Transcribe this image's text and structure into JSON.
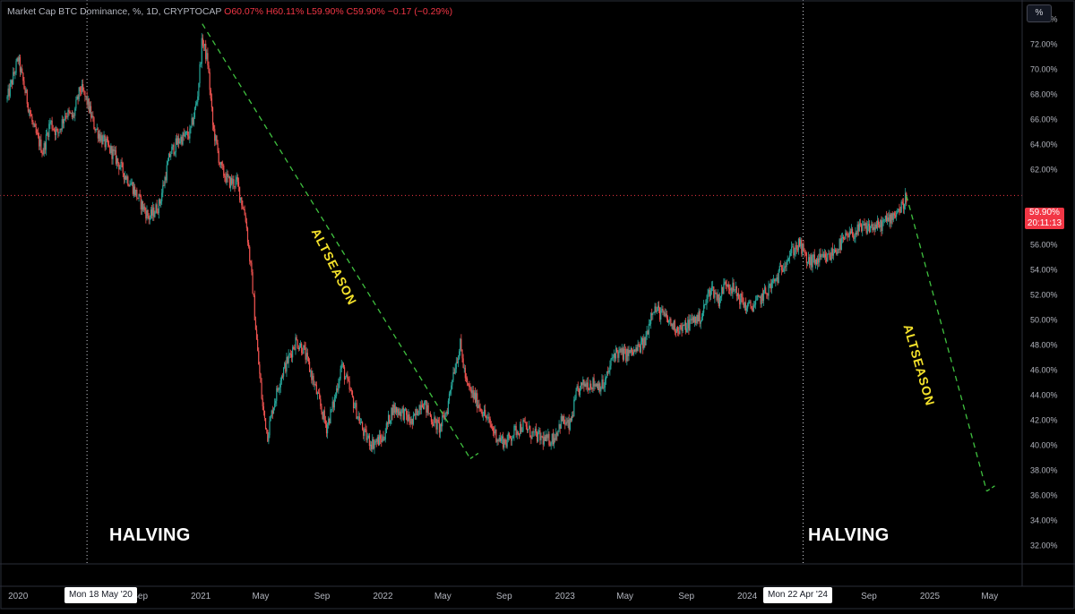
{
  "legend": {
    "symbol": "Market Cap BTC Dominance, %, 1D, CRYPTOCAP",
    "open": "O60.07%",
    "high": "H60.11%",
    "low": "L59.90%",
    "close": "C59.90%",
    "change": "−0.17 (−0.29%)"
  },
  "scale_button": "%",
  "last_price": {
    "value": "59.90%",
    "countdown": "20:11:13"
  },
  "annotations": {
    "halving_left": "HALVING",
    "halving_right": "HALVING",
    "altseason_1": "ALTSEASON",
    "altseason_2": "ALTSEASON"
  },
  "crosshair_dates": {
    "left": "Mon 18 May '20",
    "right": "Mon 22 Apr '24"
  },
  "colors": {
    "up": "#26a69a",
    "down": "#ef5350",
    "projection": "#3fc13f",
    "altseason_text": "#f5e22b",
    "price_line": "#f23645"
  },
  "chart_data": {
    "type": "line",
    "title": "Market Cap BTC Dominance, %, 1D, CRYPTOCAP",
    "ylabel": "%",
    "ylim": [
      30.5,
      75.5
    ],
    "y_ticks": [
      "74.00%",
      "72.00%",
      "70.00%",
      "68.00%",
      "66.00%",
      "64.00%",
      "62.00%",
      "58.00%",
      "56.00%",
      "54.00%",
      "52.00%",
      "50.00%",
      "48.00%",
      "46.00%",
      "44.00%",
      "42.00%",
      "40.00%",
      "38.00%",
      "36.00%",
      "34.00%",
      "32.00%"
    ],
    "x_ticks": [
      "2020",
      "Sep",
      "2021",
      "May",
      "Sep",
      "2022",
      "May",
      "Sep",
      "2023",
      "May",
      "Sep",
      "2024",
      "Sep",
      "2025",
      "May"
    ],
    "x_range": [
      "2019-12-10",
      "2025-07-05"
    ],
    "series": [
      {
        "x": [
          "2019-12-10",
          "2020-01-01",
          "2020-01-15",
          "2020-02-01",
          "2020-02-20",
          "2020-03-05",
          "2020-03-20",
          "2020-04-05",
          "2020-04-20",
          "2020-05-05",
          "2020-05-18",
          "2020-06-01",
          "2020-06-20",
          "2020-07-10",
          "2020-08-01",
          "2020-08-15",
          "2020-09-01",
          "2020-09-20",
          "2020-10-10",
          "2020-11-01",
          "2020-11-20",
          "2020-12-10",
          "2020-12-25",
          "2021-01-04",
          "2021-01-15",
          "2021-01-25",
          "2021-02-10",
          "2021-02-25",
          "2021-03-15",
          "2021-04-01",
          "2021-04-15",
          "2021-04-25",
          "2021-05-05",
          "2021-05-15",
          "2021-05-25",
          "2021-06-10",
          "2021-06-25",
          "2021-07-10",
          "2021-07-25",
          "2021-08-10",
          "2021-08-25",
          "2021-09-10",
          "2021-09-25",
          "2021-10-10",
          "2021-10-25",
          "2021-11-10",
          "2021-11-25",
          "2021-12-10",
          "2022-01-01",
          "2022-01-20",
          "2022-02-10",
          "2022-03-01",
          "2022-03-20",
          "2022-04-10",
          "2022-04-25",
          "2022-05-10",
          "2022-05-20",
          "2022-06-05",
          "2022-06-18",
          "2022-07-10",
          "2022-08-01",
          "2022-08-20",
          "2022-09-05",
          "2022-09-20",
          "2022-10-10",
          "2022-10-25",
          "2022-11-10",
          "2022-11-25",
          "2022-12-10",
          "2022-12-25",
          "2023-01-10",
          "2023-01-25",
          "2023-02-10",
          "2023-03-01",
          "2023-03-20",
          "2023-04-10",
          "2023-05-01",
          "2023-05-20",
          "2023-06-10",
          "2023-06-25",
          "2023-07-15",
          "2023-08-05",
          "2023-08-25",
          "2023-09-15",
          "2023-10-01",
          "2023-10-20",
          "2023-11-05",
          "2023-11-20",
          "2023-12-10",
          "2024-01-01",
          "2024-01-20",
          "2024-02-10",
          "2024-03-01",
          "2024-03-15",
          "2024-04-01",
          "2024-04-15",
          "2024-05-01",
          "2024-05-20",
          "2024-06-10",
          "2024-07-01",
          "2024-07-20",
          "2024-08-10",
          "2024-09-01",
          "2024-09-20",
          "2024-10-10",
          "2024-10-25",
          "2024-11-07",
          "2024-11-15"
        ],
        "values": [
          67.6,
          70.8,
          68.2,
          65.2,
          63.4,
          65.8,
          64.8,
          66.5,
          66.1,
          68.5,
          67.4,
          65.5,
          64.2,
          63.2,
          61.6,
          60.8,
          59.4,
          58.1,
          59.2,
          63.3,
          64.4,
          64.8,
          67.6,
          72.4,
          70.5,
          65.5,
          62.1,
          61.0,
          60.9,
          58.1,
          52.5,
          47.3,
          43.0,
          40.8,
          42.9,
          45.4,
          46.8,
          48.3,
          47.7,
          45.7,
          43.6,
          41.4,
          43.4,
          46.4,
          44.5,
          42.5,
          40.8,
          40.1,
          40.5,
          42.9,
          42.6,
          41.7,
          43.6,
          42.0,
          41.3,
          42.9,
          45.5,
          47.9,
          44.7,
          43.4,
          41.8,
          40.5,
          40.2,
          41.0,
          41.6,
          40.9,
          40.6,
          40.3,
          40.6,
          42.0,
          41.4,
          44.2,
          44.9,
          44.9,
          44.7,
          47.4,
          47.2,
          47.4,
          48.2,
          51.0,
          50.4,
          49.5,
          49.2,
          50.0,
          50.2,
          52.6,
          51.6,
          53.1,
          52.1,
          50.9,
          51.3,
          52.3,
          53.3,
          54.6,
          55.5,
          56.0,
          54.6,
          54.7,
          54.9,
          55.8,
          56.6,
          57.1,
          57.4,
          57.4,
          58.0,
          58.6,
          59.0,
          59.9
        ]
      },
      {
        "name": "ALTSEASON",
        "x": [
          "2021-01-04",
          "2022-06-25"
        ],
        "values": [
          73.6,
          38.9
        ]
      },
      {
        "name": "ALTSEASON",
        "x": [
          "2024-11-15",
          "2025-04-25"
        ],
        "values": [
          59.9,
          36.3
        ]
      }
    ],
    "price_line": 59.9,
    "crosshair_x": [
      "2020-05-18",
      "2024-04-22"
    ],
    "grid": false,
    "legend": "top-left"
  }
}
